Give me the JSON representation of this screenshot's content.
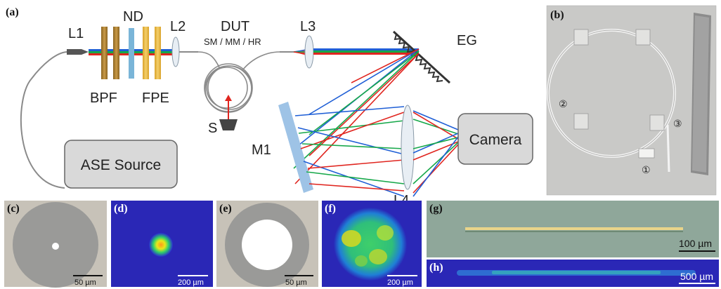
{
  "panels": {
    "a": "(a)",
    "b": "(b)",
    "c": "(c)",
    "d": "(d)",
    "e": "(e)",
    "f": "(f)",
    "g": "(g)",
    "h": "(h)"
  },
  "components": {
    "L1": "L1",
    "ND": "ND",
    "L2": "L2",
    "DUT": "DUT",
    "dut_sub": "SM / MM / HR",
    "L3": "L3",
    "EG": "EG",
    "BPF": "BPF",
    "FPE": "FPE",
    "S": "S",
    "M1": "M1",
    "L4": "L4",
    "camera": "Camera",
    "ase": "ASE Source"
  },
  "photo_markers": {
    "m1": "①",
    "m2": "②",
    "m3": "③"
  },
  "scalebars": {
    "c": "50 µm",
    "d": "200 µm",
    "e": "50 µm",
    "f": "200 µm",
    "g": "100 µm",
    "h": "500 µm"
  },
  "colors": {
    "blue_beam": "#1f5fd6",
    "green_beam": "#17a84a",
    "red_beam": "#e0251f",
    "box_fill": "#d9d9d9",
    "mirror": "#9ec3e6",
    "bpf": "#b5893a",
    "fpe": "#e8b83c"
  }
}
